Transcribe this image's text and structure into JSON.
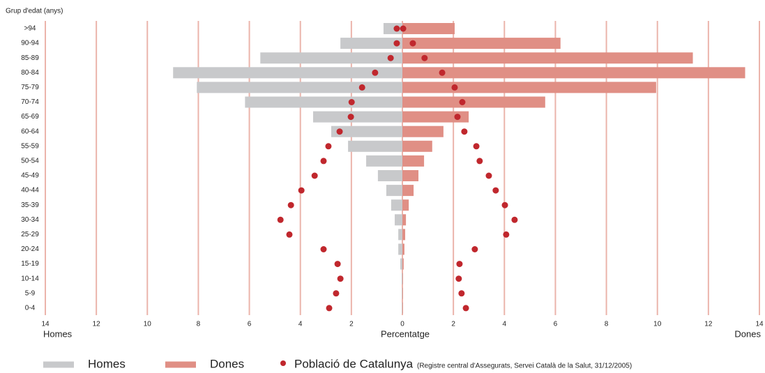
{
  "chart_data": {
    "type": "pyramid",
    "ylabel": "Grup d'edat (anys)",
    "xlabel": "Percentatge",
    "xlabel_left": "Homes",
    "xlabel_right": "Dones",
    "categories": [
      ">94",
      "90-94",
      "85-89",
      "80-84",
      "75-79",
      "70-74",
      "65-69",
      "60-64",
      "55-59",
      "50-54",
      "45-49",
      "40-44",
      "35-39",
      "30-34",
      "25-29",
      "20-24",
      "15-19",
      "10-14",
      "5-9",
      "0-4"
    ],
    "series": [
      {
        "name": "Homes",
        "color": "#c8c9cb",
        "values": [
          -0.74,
          -2.43,
          -5.57,
          -8.99,
          -8.06,
          -6.17,
          -3.5,
          -2.79,
          -2.13,
          -1.42,
          -0.96,
          -0.63,
          -0.44,
          -0.3,
          -0.16,
          -0.16,
          -0.08,
          -0.03,
          -0.02,
          -0.02
        ]
      },
      {
        "name": "Dones",
        "color": "#e08f85",
        "values": [
          2.05,
          6.2,
          11.39,
          13.44,
          9.95,
          5.6,
          2.6,
          1.61,
          1.17,
          0.85,
          0.63,
          0.44,
          0.25,
          0.14,
          0.11,
          0.08,
          0.05,
          0.02,
          0.02,
          0.02
        ]
      }
    ],
    "population": {
      "name": "Població de Catalunya",
      "source": "(Registre central d'Assegurats, Servei Català de la Salut, 31/12/2005)",
      "color": "#c0272d",
      "homes": [
        -0.22,
        -0.22,
        -0.46,
        -1.07,
        -1.58,
        -1.99,
        -2.02,
        -2.46,
        -2.9,
        -3.09,
        -3.44,
        -3.96,
        -4.37,
        -4.78,
        -4.43,
        -3.09,
        -2.54,
        -2.43,
        -2.6,
        -2.87
      ],
      "dones": [
        0.03,
        0.41,
        0.87,
        1.56,
        2.05,
        2.35,
        2.16,
        2.43,
        2.9,
        3.03,
        3.39,
        3.66,
        4.02,
        4.4,
        4.07,
        2.84,
        2.24,
        2.21,
        2.32,
        2.49
      ]
    },
    "xlim": [
      -14,
      14
    ],
    "xticks": [
      {
        "value": -14,
        "label": "14"
      },
      {
        "value": -12,
        "label": "12"
      },
      {
        "value": -10,
        "label": "10"
      },
      {
        "value": -8,
        "label": "8"
      },
      {
        "value": -6,
        "label": "6"
      },
      {
        "value": -4,
        "label": "4"
      },
      {
        "value": -2,
        "label": "2"
      },
      0,
      2,
      4,
      6,
      8,
      10,
      12,
      14
    ],
    "grid": true,
    "grid_color": "#ebb4ab"
  }
}
